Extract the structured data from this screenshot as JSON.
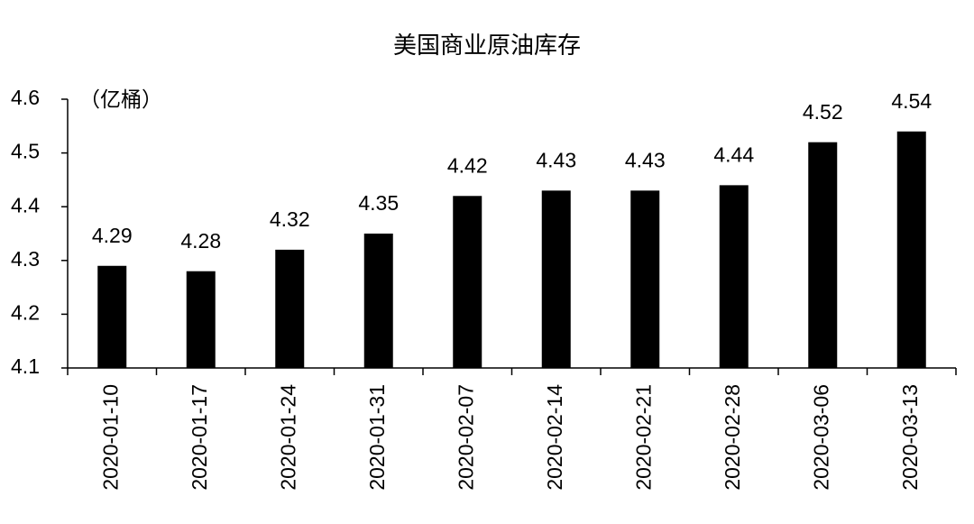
{
  "chart_data": {
    "type": "bar",
    "title": "美国商业原油库存",
    "y_label": "（亿桶）",
    "categories": [
      "2020-01-10",
      "2020-01-17",
      "2020-01-24",
      "2020-01-31",
      "2020-02-07",
      "2020-02-14",
      "2020-02-21",
      "2020-02-28",
      "2020-03-06",
      "2020-03-13"
    ],
    "values": [
      4.29,
      4.28,
      4.32,
      4.35,
      4.42,
      4.43,
      4.43,
      4.44,
      4.52,
      4.54
    ],
    "color": "#000000",
    "ylim": [
      4.1,
      4.6
    ],
    "yticks": [
      4.1,
      4.2,
      4.3,
      4.4,
      4.5,
      4.6
    ],
    "grid": false
  }
}
